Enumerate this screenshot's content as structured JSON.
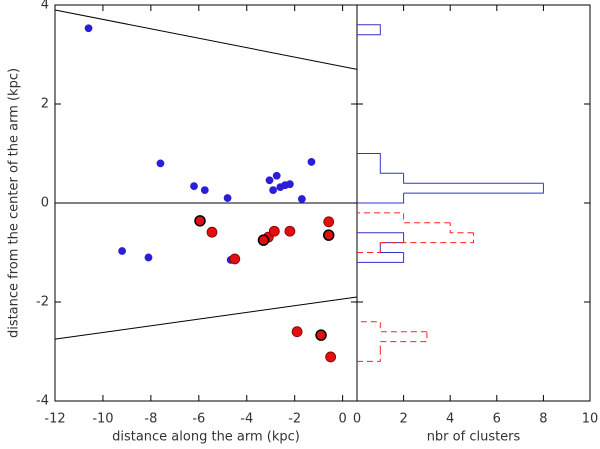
{
  "chart_data": [
    {
      "type": "scatter",
      "xlabel": "distance along the arm (kpc)",
      "ylabel": "distance from the center of the arm (kpc)",
      "xlim": [
        -12,
        0.6
      ],
      "ylim": [
        -4,
        4
      ],
      "xticks": [
        -12,
        -10,
        -8,
        -6,
        -4,
        -2,
        0
      ],
      "yticks": [
        -4,
        -2,
        0,
        2,
        4
      ],
      "show_ytick_labels": true,
      "hlines": [
        0
      ],
      "lines": [
        {
          "color": "#000000",
          "x": [
            -12,
            0.6
          ],
          "values": [
            3.9,
            2.7
          ]
        },
        {
          "color": "#000000",
          "x": [
            -12,
            0.6
          ],
          "values": [
            -2.75,
            -1.9
          ]
        }
      ],
      "series": [
        {
          "color": "#2a1fd6",
          "edgecolor": "#2a1fd6",
          "size": 3.5,
          "x": [
            -10.6,
            -7.6,
            -6.2,
            -5.75,
            -4.8,
            -9.2,
            -8.1,
            -4.67,
            -3.05,
            -2.75,
            -2.9,
            -2.6,
            -2.4,
            -2.2,
            -1.7,
            -1.3
          ],
          "values": [
            3.53,
            0.8,
            0.34,
            0.26,
            0.1,
            -0.97,
            -1.1,
            -1.15,
            0.46,
            0.55,
            0.26,
            0.32,
            0.36,
            0.38,
            0.08,
            0.83
          ]
        },
        {
          "color": "#e01010",
          "edgecolor": "#800000",
          "size": 5,
          "x": [
            -5.45,
            -4.5,
            -3.1,
            -2.85,
            -2.2,
            -0.58,
            -1.9,
            -0.5
          ],
          "values": [
            -0.59,
            -1.13,
            -0.69,
            -0.57,
            -0.57,
            -0.38,
            -2.6,
            -3.11
          ]
        },
        {
          "color": "#e01010",
          "edgecolor": "#000000",
          "size": 5,
          "x": [
            -5.95,
            -3.3,
            -0.58,
            -0.9
          ],
          "values": [
            -0.36,
            -0.75,
            -0.65,
            -2.67
          ]
        }
      ]
    },
    {
      "type": "histogram",
      "orientation": "horizontal",
      "xlabel": "nbr of clusters",
      "xlim": [
        0,
        10
      ],
      "ylim": [
        -4,
        4
      ],
      "xticks": [
        0,
        2,
        4,
        6,
        8,
        10
      ],
      "yticks": [
        -4,
        -2,
        0,
        2,
        4
      ],
      "show_ytick_labels": false,
      "bins": [
        -3.2,
        -3.0,
        -2.8,
        -2.6,
        -2.4,
        -2.2,
        -2.0,
        -1.8,
        -1.6,
        -1.4,
        -1.2,
        -1.0,
        -0.8,
        -0.6,
        -0.4,
        -0.2,
        0,
        0.2,
        0.4,
        0.6,
        0.8,
        1.0,
        1.2,
        1.4,
        1.6,
        1.8,
        2.0,
        2.2,
        2.4,
        2.6,
        2.8,
        3.0,
        3.2,
        3.4,
        3.6,
        3.8
      ],
      "series": [
        {
          "color": "#3333cc",
          "linestyle": "solid",
          "values": [
            0,
            0,
            0,
            0,
            0,
            0,
            0,
            0,
            0,
            0,
            2,
            1,
            2,
            0,
            0,
            0,
            2,
            8,
            2,
            1,
            1,
            0,
            0,
            0,
            0,
            0,
            0,
            0,
            0,
            0,
            0,
            0,
            0,
            1,
            0
          ]
        },
        {
          "color": "#ff2222",
          "linestyle": "dashed",
          "values": [
            1,
            1,
            3,
            1,
            0,
            0,
            0,
            0,
            0,
            0,
            0,
            1,
            5,
            4,
            2,
            0,
            0,
            0,
            0,
            0,
            0,
            0,
            0,
            0,
            0,
            0,
            0,
            0,
            0,
            0,
            0,
            0,
            0,
            0,
            0
          ]
        }
      ]
    }
  ]
}
